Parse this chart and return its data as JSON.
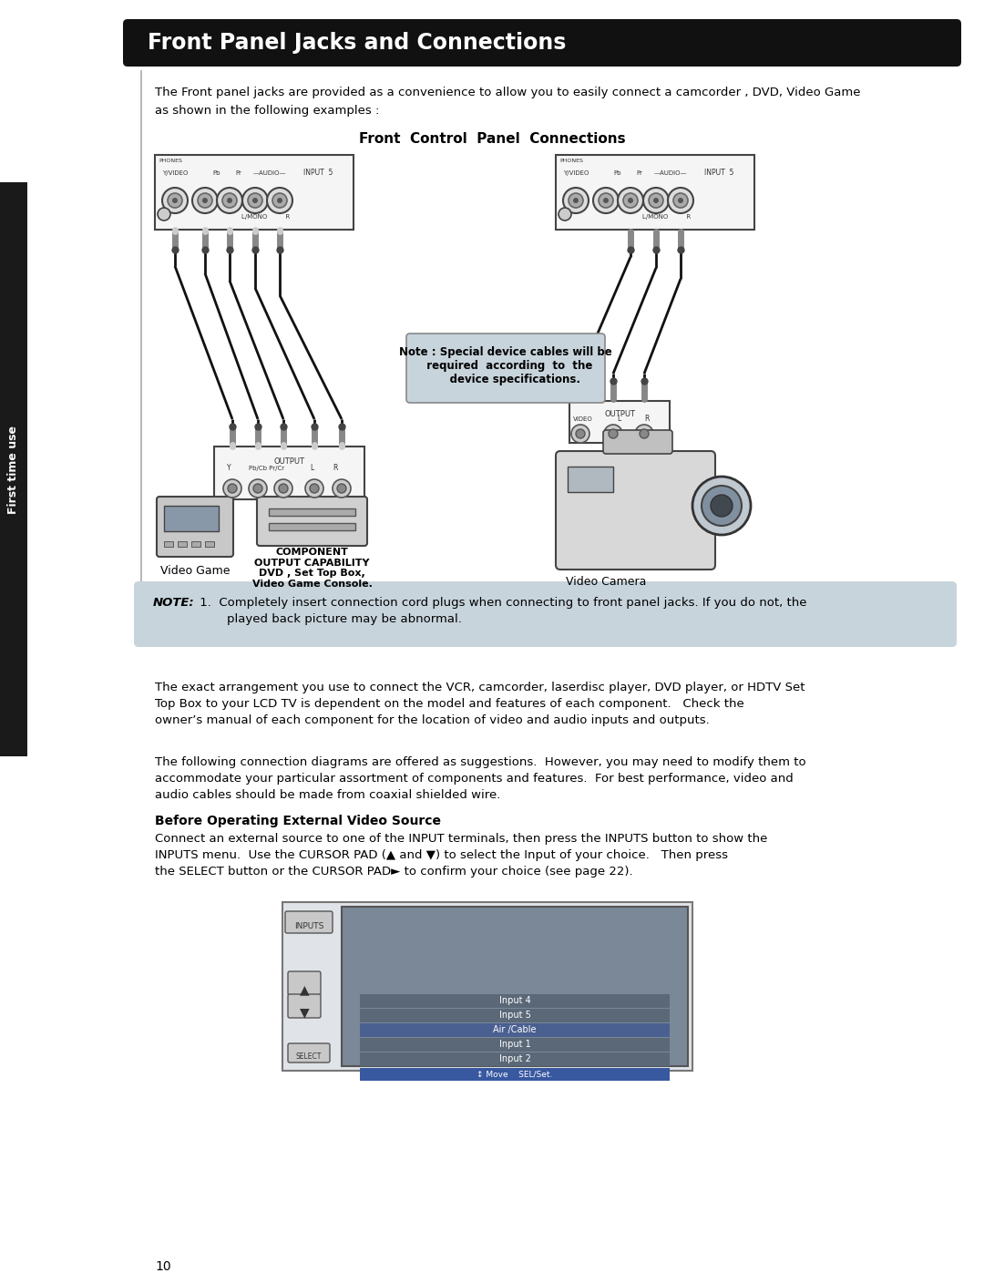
{
  "page_bg": "#ffffff",
  "left_tab_bg": "#1a1a1a",
  "left_tab_text": "First time use",
  "left_tab_text_color": "#ffffff",
  "header_bg": "#111111",
  "header_text": "Front Panel Jacks and Connections",
  "header_text_color": "#ffffff",
  "intro_text1": "The Front panel jacks are provided as a convenience to allow you to easily connect a camcorder , DVD, Video Game",
  "intro_text2": "as shown in the following examples :",
  "diagram_title": "Front  Control  Panel  Connections",
  "note_box_text": "Note : Special device cables will be\n  required  according  to  the\n     device specifications.",
  "note_box_bg": "#c8d4dc",
  "note_box_border": "#777777",
  "component_label1": "Video Game",
  "component_label2": "COMPONENT\nOUTPUT CAPABILITY\nDVD , Set Top Box,\nVideo Game Console.",
  "component_label3": "Video Camera",
  "note_section_bg": "#c8d4dc",
  "note_bold": "NOTE:",
  "note_num": " 1.  ",
  "note_body": "Completely insert connection cord plugs when connecting to front panel jacks. If you do not, the",
  "note_body2": "        played back picture may be abnormal.",
  "para1_line1": "The exact arrangement you use to connect the VCR, camcorder, laserdisc player, DVD player, or HDTV Set",
  "para1_line2": "Top Box to your LCD TV is dependent on the model and features of each component.   Check the",
  "para1_line3": "owner’s manual of each component for the location of video and audio inputs and outputs.",
  "para2_line1": "The following connection diagrams are offered as suggestions.  However, you may need to modify them to",
  "para2_line2": "accommodate your particular assortment of components and features.  For best performance, video and",
  "para2_line3": "audio cables should be made from coaxial shielded wire.",
  "before_title": "Before Operating External Video Source",
  "before_line1": "Connect an external source to one of the INPUT terminals, then press the INPUTS button to show the",
  "before_line2": "INPUTS menu.  Use the CURSOR PAD (▲ and ▼) to select the Input of your choice.   Then press",
  "before_line3": "the SELECT button or the CURSOR PAD► to confirm your choice (see page 22).",
  "page_number": "10",
  "inputs_menu_items": [
    "Input 4",
    "Input 5",
    "Air /Cable",
    "Input 1",
    "Input 2"
  ],
  "inputs_menu_selected_idx": 2,
  "inputs_menu_footer": "↕ Move    SEL/Set.",
  "cable_color": "#111111",
  "panel_bg": "#f5f5f5",
  "connector_ring_color": "#555555"
}
